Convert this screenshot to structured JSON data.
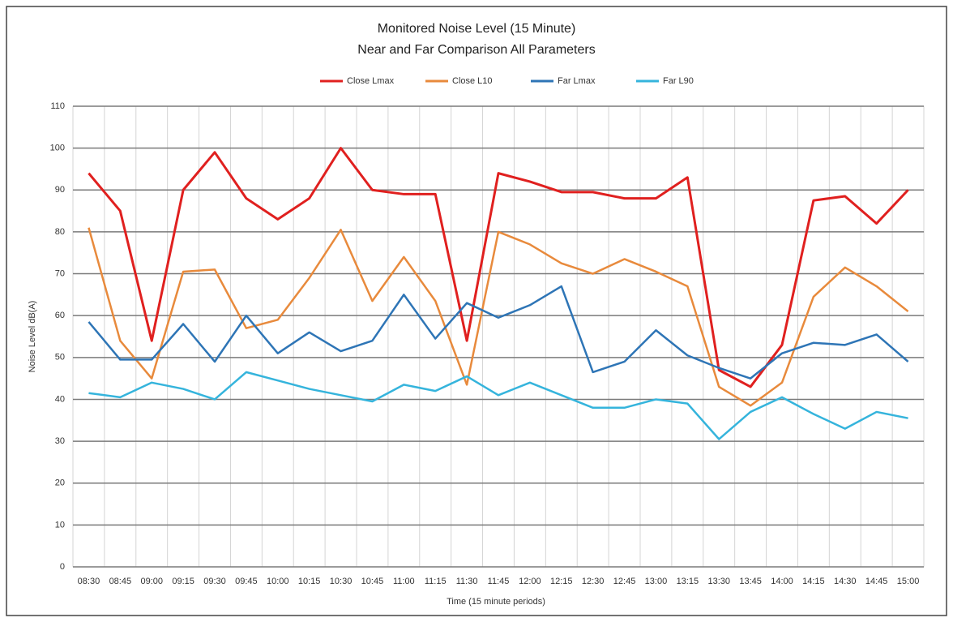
{
  "chart_data": {
    "type": "line",
    "title": "Monitored Noise Level (15 Minute)",
    "subtitle": "Near and Far Comparison All Parameters",
    "x_label": "Time (15 minute periods)",
    "y_label": "Noise Level dB(A)",
    "categories": [
      "08:30",
      "08:45",
      "09:00",
      "09:15",
      "09:30",
      "09:45",
      "10:00",
      "10:15",
      "10:30",
      "10:45",
      "11:00",
      "11:15",
      "11:30",
      "11:45",
      "12:00",
      "12:15",
      "12:30",
      "12:45",
      "13:00",
      "13:15",
      "13:30",
      "13:45",
      "14:00",
      "14:15",
      "14:30",
      "14:45",
      "15:00"
    ],
    "series": [
      {
        "name": "Close Lmax",
        "color": "#e0201f",
        "values": [
          94,
          85,
          54,
          90,
          99,
          88,
          83,
          88,
          100,
          90,
          89,
          89,
          54,
          94,
          92,
          89.5,
          89.5,
          88,
          88,
          93,
          47,
          43,
          53,
          87.5,
          88.5,
          82,
          90
        ]
      },
      {
        "name": "Close L10",
        "color": "#e88a3c",
        "values": [
          81,
          54,
          45,
          70.5,
          71,
          57,
          59,
          69,
          80.5,
          63.5,
          74,
          63.5,
          43.5,
          80,
          77,
          72.5,
          70,
          73.5,
          70.5,
          67,
          43,
          38.5,
          44,
          64.5,
          71.5,
          67,
          61
        ]
      },
      {
        "name": "Far Lmax",
        "color": "#2e75b6",
        "values": [
          58.5,
          49.5,
          49.5,
          58,
          49,
          60,
          51,
          56,
          51.5,
          54,
          65,
          54.5,
          63,
          59.5,
          62.5,
          67,
          46.5,
          49,
          56.5,
          50.5,
          47.5,
          45,
          51,
          53.5,
          53,
          55.5,
          49
        ]
      },
      {
        "name": "Far L90",
        "color": "#35b4dc",
        "values": [
          41.5,
          40.5,
          44,
          42.5,
          40,
          46.5,
          44.5,
          42.5,
          41,
          39.5,
          43.5,
          42,
          45.5,
          41,
          44,
          41,
          38,
          38,
          40,
          39,
          30.5,
          37,
          40.5,
          36.5,
          33,
          37,
          35.5
        ]
      }
    ],
    "ylim": [
      0,
      110
    ],
    "yticks": [
      0,
      10,
      20,
      30,
      40,
      50,
      60,
      70,
      80,
      90,
      100,
      110
    ],
    "grid": true,
    "legend": "top"
  }
}
